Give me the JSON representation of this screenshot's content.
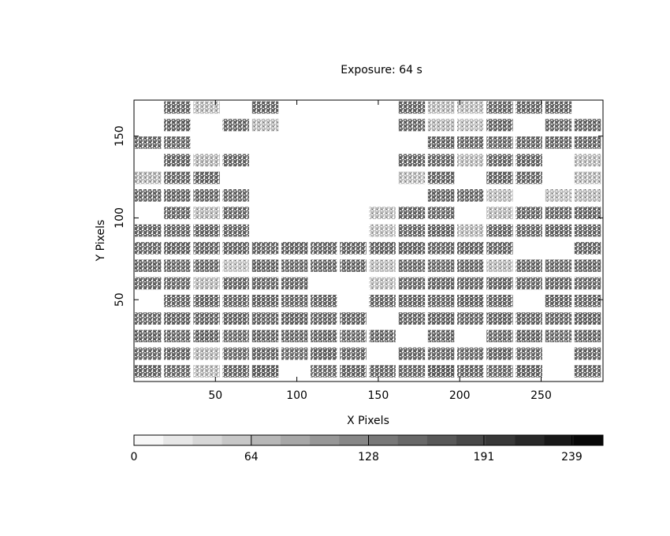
{
  "chart_data": {
    "type": "heatmap",
    "title": "Exposure: 64 s",
    "x_label": "X Pixels",
    "y_label": "Y Pixels",
    "xbins": [
      0,
      18,
      36,
      54,
      72,
      90,
      108,
      126,
      144,
      162,
      180,
      198,
      216,
      234,
      252,
      270,
      288
    ],
    "ybins": [
      0,
      10.75,
      21.5,
      32.25,
      43,
      53.75,
      64.5,
      75.25,
      86,
      96.75,
      107.5,
      118.25,
      129,
      139.75,
      150.5,
      161.25,
      172
    ],
    "z": [
      [
        150,
        142,
        70,
        148,
        155,
        null,
        139,
        151,
        146,
        144,
        158,
        149,
        141,
        153,
        null,
        147
      ],
      [
        146,
        152,
        75,
        143,
        150,
        140,
        155,
        149,
        null,
        151,
        148,
        143,
        152,
        146,
        null,
        150
      ],
      [
        153,
        147,
        156,
        145,
        151,
        148,
        152,
        144,
        150,
        null,
        149,
        null,
        147,
        154,
        143,
        151
      ],
      [
        144,
        151,
        149,
        152,
        146,
        153,
        147,
        150,
        null,
        148,
        152,
        145,
        151,
        149,
        146,
        153
      ],
      [
        null,
        148,
        152,
        146,
        151,
        145,
        149,
        null,
        147,
        150,
        146,
        153,
        148,
        null,
        151,
        147
      ],
      [
        149,
        145,
        72,
        151,
        147,
        150,
        null,
        null,
        68,
        146,
        151,
        148,
        152,
        147,
        150,
        145
      ],
      [
        151,
        147,
        150,
        65,
        153,
        146,
        149,
        152,
        70,
        148,
        145,
        150,
        74,
        151,
        147,
        152
      ],
      [
        146,
        152,
        148,
        150,
        145,
        151,
        147,
        149,
        150,
        153,
        146,
        152,
        148,
        null,
        null,
        150
      ],
      [
        150,
        146,
        151,
        148,
        null,
        null,
        null,
        null,
        66,
        147,
        152,
        71,
        149,
        146,
        151,
        148
      ],
      [
        null,
        149,
        73,
        147,
        null,
        null,
        null,
        null,
        69,
        151,
        146,
        null,
        72,
        150,
        148,
        152
      ],
      [
        147,
        152,
        150,
        146,
        null,
        null,
        null,
        null,
        null,
        null,
        151,
        148,
        70,
        null,
        67,
        73
      ],
      [
        75,
        146,
        151,
        null,
        null,
        null,
        null,
        null,
        null,
        68,
        149,
        null,
        152,
        147,
        null,
        71
      ],
      [
        null,
        151,
        74,
        149,
        null,
        null,
        null,
        null,
        null,
        150,
        146,
        69,
        148,
        151,
        null,
        70
      ],
      [
        149,
        147,
        null,
        null,
        null,
        null,
        null,
        null,
        null,
        null,
        152,
        148,
        146,
        150,
        149,
        151
      ],
      [
        null,
        153,
        null,
        148,
        72,
        null,
        null,
        null,
        null,
        147,
        73,
        66,
        151,
        null,
        146,
        150
      ],
      [
        null,
        148,
        71,
        null,
        150,
        null,
        null,
        null,
        null,
        152,
        70,
        68,
        147,
        149,
        151,
        null
      ]
    ],
    "xlim": [
      0,
      288
    ],
    "ylim": [
      0,
      172
    ],
    "xticks": [
      50,
      100,
      150,
      200,
      250
    ],
    "yticks": [
      50,
      100,
      150
    ],
    "colormap": "gray_r",
    "clim": [
      0,
      256
    ],
    "colorbar_ticks": [
      0,
      64,
      128,
      191,
      239
    ]
  }
}
